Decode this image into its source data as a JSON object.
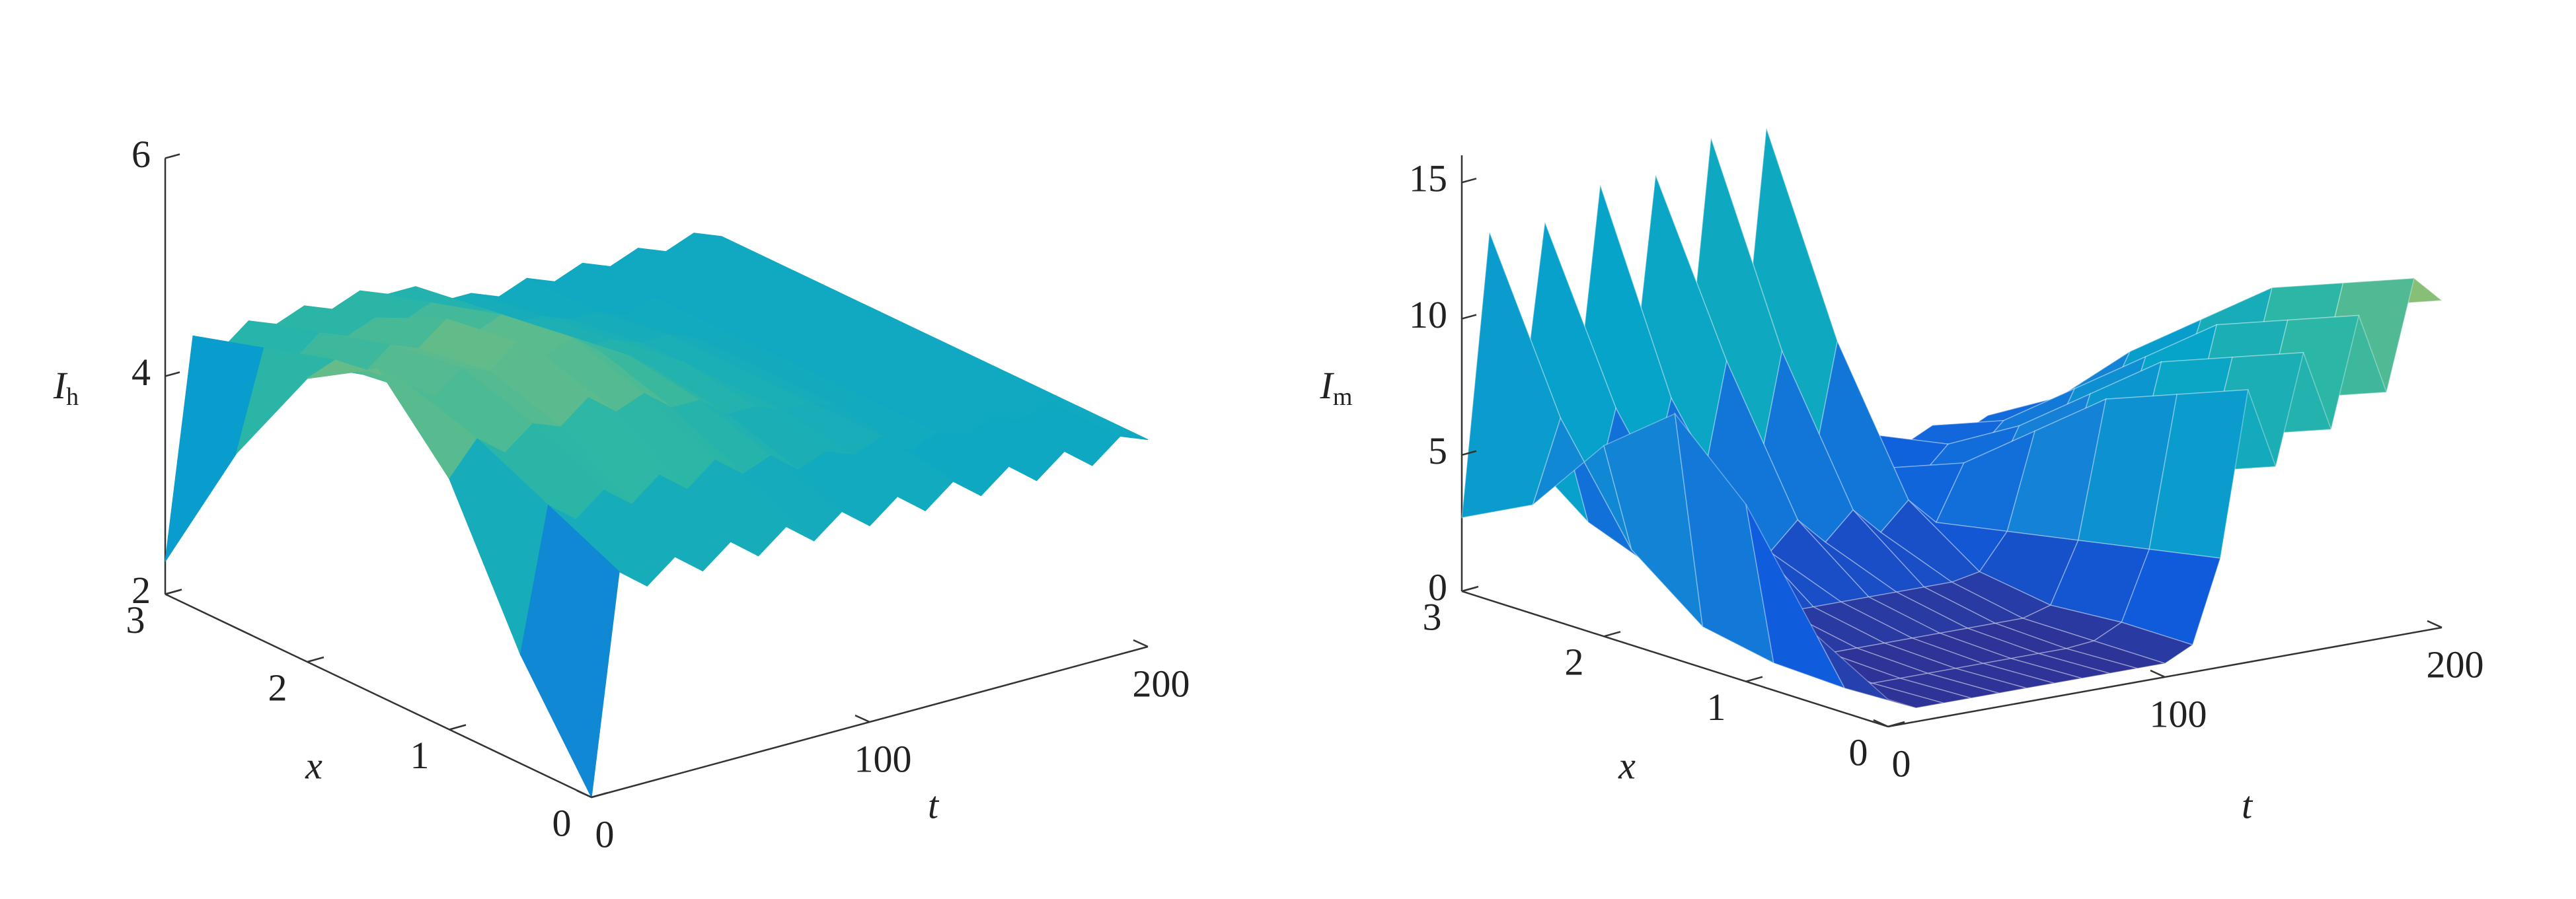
{
  "chart_data": [
    {
      "type": "surface",
      "colormap": "parula",
      "zlabel": {
        "text": "I",
        "sub": "h"
      },
      "xlabel": "x",
      "tlabel": "t",
      "x": [
        0,
        0.5,
        1,
        1.5,
        2,
        2.5,
        3
      ],
      "t": [
        0,
        10,
        20,
        30,
        40,
        50,
        60,
        70,
        80,
        90,
        100,
        110,
        120,
        130,
        140,
        150,
        160,
        170,
        180,
        190,
        200
      ],
      "values": [
        [
          2.0,
          4.0,
          3.8,
          4.0,
          3.8,
          4.0,
          3.8,
          4.0,
          3.8,
          4.0,
          3.8,
          4.0,
          3.8,
          4.0,
          3.8,
          4.0,
          3.8,
          4.0,
          3.8,
          4.0,
          3.9
        ],
        [
          3.0,
          4.3,
          4.1,
          4.3,
          4.1,
          4.3,
          4.1,
          4.3,
          4.1,
          4.2,
          4.0,
          4.1,
          4.0,
          4.1,
          3.9,
          4.0,
          3.9,
          4.0,
          3.9,
          4.0,
          3.9
        ],
        [
          4.3,
          4.6,
          4.4,
          4.6,
          4.5,
          4.7,
          4.5,
          4.6,
          4.4,
          4.4,
          4.2,
          4.2,
          4.1,
          4.1,
          4.0,
          4.0,
          3.9,
          4.0,
          3.9,
          4.0,
          3.9
        ],
        [
          5.0,
          4.8,
          4.6,
          4.8,
          4.7,
          4.9,
          4.7,
          4.8,
          4.6,
          4.5,
          4.3,
          4.3,
          4.1,
          4.1,
          4.0,
          4.0,
          3.9,
          4.0,
          3.9,
          4.0,
          3.9
        ],
        [
          4.6,
          4.7,
          4.5,
          4.7,
          4.6,
          4.8,
          4.6,
          4.7,
          4.5,
          4.4,
          4.2,
          4.2,
          4.1,
          4.1,
          4.0,
          4.0,
          3.9,
          4.0,
          3.9,
          4.0,
          3.9
        ],
        [
          3.6,
          4.5,
          4.3,
          4.5,
          4.4,
          4.5,
          4.4,
          4.5,
          4.3,
          4.3,
          4.1,
          4.1,
          4.0,
          4.0,
          3.9,
          4.0,
          3.9,
          4.0,
          3.9,
          4.0,
          3.9
        ],
        [
          2.3,
          4.3,
          4.1,
          4.3,
          4.2,
          4.3,
          4.2,
          4.3,
          4.2,
          4.2,
          4.0,
          4.0,
          3.9,
          4.0,
          3.9,
          4.0,
          3.9,
          4.0,
          3.9,
          4.0,
          3.9
        ]
      ],
      "xlim": [
        0,
        3
      ],
      "tlim": [
        0,
        200
      ],
      "zlim": [
        2,
        6
      ],
      "xticks": [
        0,
        1,
        2,
        3
      ],
      "tticks": [
        0,
        100,
        200
      ],
      "zticks": [
        2,
        4,
        6
      ]
    },
    {
      "type": "surface",
      "colormap": "parula",
      "zlabel": {
        "text": "I",
        "sub": "m"
      },
      "xlabel": "x",
      "tlabel": "t",
      "x": [
        0,
        0.5,
        1,
        1.5,
        2,
        2.5,
        3
      ],
      "t": [
        0,
        10,
        20,
        30,
        40,
        50,
        60,
        70,
        80,
        90,
        100,
        110,
        120,
        130,
        140,
        150,
        160,
        170,
        180,
        190,
        200
      ],
      "values": [
        [
          1.0,
          0.5,
          0.5,
          0.5,
          0.5,
          0.5,
          0.5,
          0.5,
          0.5,
          0.5,
          0.5,
          1.0,
          4.0,
          10,
          7,
          11,
          8,
          12,
          9,
          13,
          12
        ],
        [
          2.5,
          0.4,
          0.4,
          0.4,
          0.4,
          0.4,
          0.4,
          0.4,
          0.4,
          0.4,
          0.5,
          1.0,
          3.5,
          9,
          6,
          10,
          7,
          11,
          8,
          12,
          11
        ],
        [
          6.5,
          0.5,
          0.5,
          0.5,
          0.5,
          0.5,
          0.5,
          0.5,
          0.5,
          0.5,
          0.5,
          0.8,
          3.0,
          8,
          5,
          9,
          6,
          10,
          7,
          11,
          10
        ],
        [
          9.0,
          1.0,
          1.0,
          1.0,
          1.0,
          1.0,
          1.0,
          1.0,
          1.0,
          1.0,
          1.0,
          1.2,
          2.5,
          6,
          4,
          7,
          5,
          8,
          6,
          9,
          8
        ],
        [
          7.0,
          3,
          2,
          3,
          2,
          3,
          2,
          3,
          2,
          3,
          2,
          3,
          2,
          4,
          3,
          5,
          4,
          6,
          5,
          7,
          6
        ],
        [
          4.0,
          7,
          3,
          7,
          3,
          7,
          3,
          8,
          3,
          8,
          3,
          8,
          3,
          3,
          2.5,
          3.5,
          3,
          4,
          3.5,
          4.5,
          4
        ],
        [
          2.7,
          13,
          5,
          13,
          5,
          14,
          5,
          14,
          5,
          15,
          5,
          15,
          5,
          3,
          2,
          3,
          2.5,
          3,
          2.5,
          3,
          3
        ]
      ],
      "xlim": [
        0,
        3
      ],
      "tlim": [
        0,
        200
      ],
      "zlim": [
        0,
        16
      ],
      "xticks": [
        0,
        1,
        2,
        3
      ],
      "tticks": [
        0,
        100,
        200
      ],
      "zticks": [
        0,
        5,
        10,
        15
      ]
    }
  ]
}
